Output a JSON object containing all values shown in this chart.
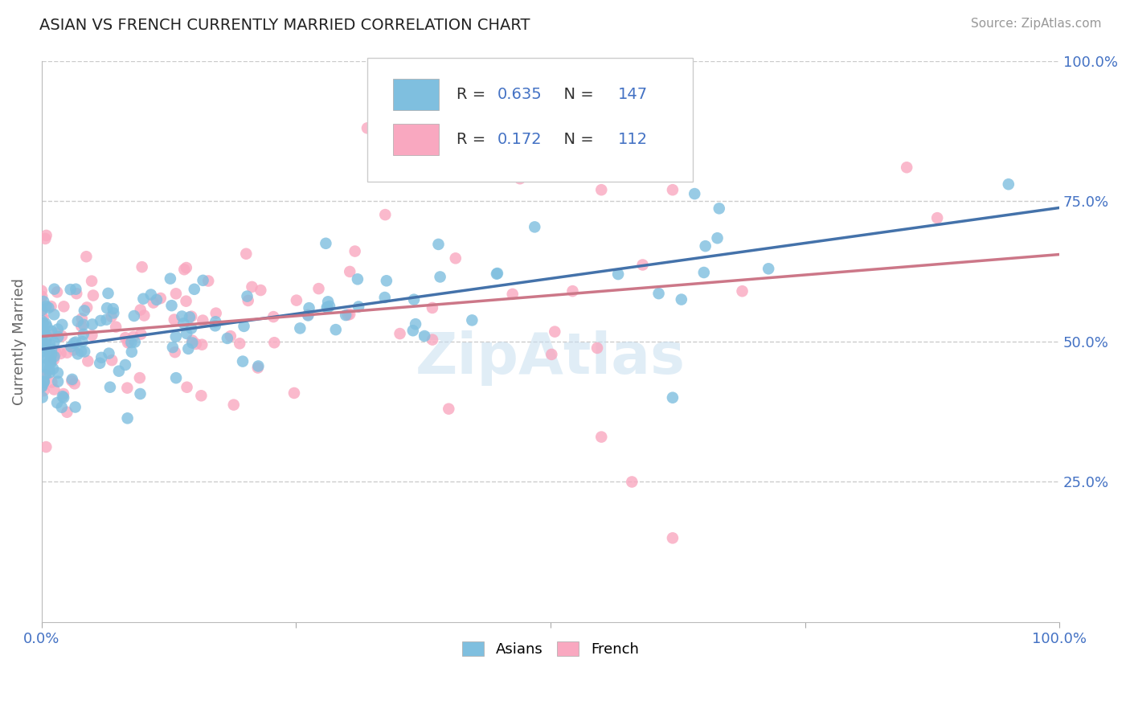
{
  "title": "ASIAN VS FRENCH CURRENTLY MARRIED CORRELATION CHART",
  "source": "Source: ZipAtlas.com",
  "ylabel": "Currently Married",
  "xlim": [
    0,
    1
  ],
  "ylim": [
    0,
    1
  ],
  "asian_color": "#7fbfdf",
  "french_color": "#f9a8c0",
  "asian_R": 0.635,
  "asian_N": 147,
  "french_R": 0.172,
  "french_N": 112,
  "asian_line_color": "#4472aa",
  "french_line_color": "#cc7788",
  "legend_label_asian": "Asians",
  "legend_label_french": "French",
  "watermark": "ZipAtlas",
  "background_color": "#ffffff",
  "grid_color": "#cccccc",
  "blue_text_color": "#4472c4",
  "source_color": "#999999",
  "title_color": "#222222",
  "ylabel_color": "#666666"
}
